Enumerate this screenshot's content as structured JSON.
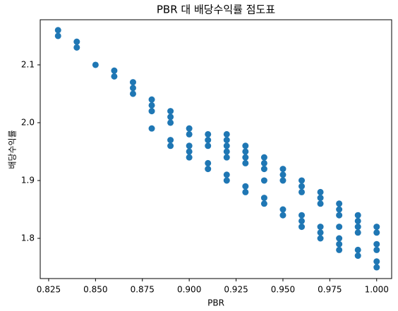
{
  "chart_data": {
    "type": "scatter",
    "title": "PBR 대 배당수익률 점도표",
    "x_label": "PBR",
    "y_label": "배당수익률",
    "color": "#1f77b4",
    "x": [
      0.83,
      0.83,
      0.84,
      0.84,
      0.85,
      0.86,
      0.86,
      0.87,
      0.87,
      0.87,
      0.88,
      0.88,
      0.88,
      0.88,
      0.89,
      0.89,
      0.89,
      0.89,
      0.89,
      0.9,
      0.9,
      0.9,
      0.9,
      0.9,
      0.91,
      0.91,
      0.91,
      0.91,
      0.91,
      0.92,
      0.92,
      0.92,
      0.92,
      0.92,
      0.92,
      0.92,
      0.93,
      0.93,
      0.93,
      0.93,
      0.93,
      0.93,
      0.94,
      0.94,
      0.94,
      0.94,
      0.94,
      0.94,
      0.95,
      0.95,
      0.95,
      0.95,
      0.95,
      0.96,
      0.96,
      0.96,
      0.96,
      0.96,
      0.96,
      0.97,
      0.97,
      0.97,
      0.97,
      0.97,
      0.97,
      0.98,
      0.98,
      0.98,
      0.98,
      0.98,
      0.98,
      0.98,
      0.99,
      0.99,
      0.99,
      0.99,
      0.99,
      0.99,
      1.0,
      1.0,
      1.0,
      1.0,
      1.0,
      1.0
    ],
    "values": [
      2.16,
      2.15,
      2.14,
      2.13,
      2.1,
      2.09,
      2.08,
      2.07,
      2.06,
      2.05,
      2.04,
      2.03,
      2.02,
      1.99,
      2.02,
      2.01,
      2.0,
      1.97,
      1.96,
      1.99,
      1.98,
      1.96,
      1.95,
      1.94,
      1.98,
      1.97,
      1.96,
      1.93,
      1.92,
      1.98,
      1.97,
      1.96,
      1.95,
      1.94,
      1.91,
      1.9,
      1.96,
      1.95,
      1.94,
      1.93,
      1.89,
      1.88,
      1.94,
      1.93,
      1.92,
      1.9,
      1.87,
      1.86,
      1.92,
      1.91,
      1.9,
      1.85,
      1.84,
      1.9,
      1.89,
      1.88,
      1.84,
      1.83,
      1.82,
      1.88,
      1.87,
      1.86,
      1.82,
      1.81,
      1.8,
      1.86,
      1.85,
      1.84,
      1.82,
      1.8,
      1.79,
      1.78,
      1.84,
      1.83,
      1.82,
      1.81,
      1.78,
      1.77,
      1.82,
      1.81,
      1.79,
      1.78,
      1.76,
      1.75
    ],
    "xlim": [
      0.8205,
      1.008
    ],
    "xticks": [
      0.825,
      {
        "value": 0.85,
        "label": "0.850"
      },
      0.875,
      {
        "value": 0.9,
        "label": "0.900"
      },
      0.925,
      {
        "value": 0.95,
        "label": "0.950"
      },
      0.975,
      {
        "value": 1.0,
        "label": "1.000"
      }
    ],
    "ylim": [
      1.7305,
      2.178
    ],
    "yticks": [
      1.8,
      1.9,
      {
        "value": 2.0,
        "label": "2.0"
      },
      2.1
    ]
  }
}
